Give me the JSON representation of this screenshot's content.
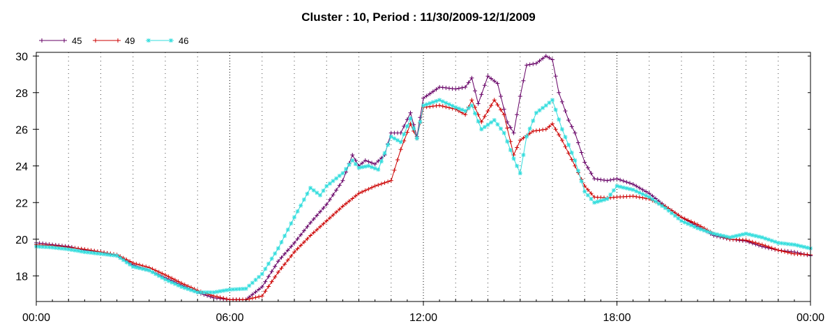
{
  "chart_data": {
    "type": "line",
    "title": "Cluster : 10, Period : 11/30/2009-12/1/2009",
    "xlabel": "",
    "ylabel": "",
    "xlim_hours": [
      0,
      24
    ],
    "ylim": [
      16.6,
      30.2
    ],
    "x_ticks": [
      {
        "hour": 0,
        "label": "00:00"
      },
      {
        "hour": 6,
        "label": "06:00"
      },
      {
        "hour": 12,
        "label": "12:00"
      },
      {
        "hour": 18,
        "label": "18:00"
      },
      {
        "hour": 24,
        "label": "00:00"
      }
    ],
    "y_ticks": [
      18,
      20,
      22,
      24,
      26,
      28,
      30
    ],
    "grid": true,
    "legend_position": "top-left",
    "series": [
      {
        "name": "45",
        "color": "#660066",
        "marker": "plus",
        "points": [
          [
            0,
            19.8
          ],
          [
            0.5,
            19.7
          ],
          [
            1,
            19.6
          ],
          [
            1.5,
            19.4
          ],
          [
            2,
            19.3
          ],
          [
            2.5,
            19.1
          ],
          [
            3,
            18.6
          ],
          [
            3.5,
            18.3
          ],
          [
            4,
            17.9
          ],
          [
            4.5,
            17.5
          ],
          [
            5,
            17.1
          ],
          [
            5.5,
            16.8
          ],
          [
            6,
            16.7
          ],
          [
            6.5,
            16.7
          ],
          [
            7,
            17.4
          ],
          [
            7.5,
            18.8
          ],
          [
            8,
            19.8
          ],
          [
            8.5,
            20.9
          ],
          [
            9,
            21.9
          ],
          [
            9.5,
            23.2
          ],
          [
            9.8,
            24.6
          ],
          [
            10,
            24.0
          ],
          [
            10.2,
            24.3
          ],
          [
            10.5,
            24.1
          ],
          [
            10.8,
            24.6
          ],
          [
            11,
            25.8
          ],
          [
            11.3,
            25.8
          ],
          [
            11.6,
            26.9
          ],
          [
            11.8,
            25.6
          ],
          [
            12,
            27.7
          ],
          [
            12.5,
            28.3
          ],
          [
            13,
            28.2
          ],
          [
            13.3,
            28.3
          ],
          [
            13.5,
            28.8
          ],
          [
            13.7,
            27.4
          ],
          [
            14,
            28.9
          ],
          [
            14.3,
            28.5
          ],
          [
            14.6,
            26.4
          ],
          [
            14.8,
            25.8
          ],
          [
            15,
            27.8
          ],
          [
            15.2,
            29.5
          ],
          [
            15.5,
            29.6
          ],
          [
            15.8,
            30.0
          ],
          [
            16,
            29.8
          ],
          [
            16.2,
            28.0
          ],
          [
            16.5,
            26.5
          ],
          [
            16.7,
            25.8
          ],
          [
            17,
            24.2
          ],
          [
            17.3,
            23.3
          ],
          [
            17.7,
            23.2
          ],
          [
            18,
            23.3
          ],
          [
            18.5,
            23.0
          ],
          [
            19,
            22.5
          ],
          [
            19.5,
            21.8
          ],
          [
            20,
            21.2
          ],
          [
            20.5,
            20.7
          ],
          [
            21,
            20.2
          ],
          [
            21.5,
            20.0
          ],
          [
            22,
            19.9
          ],
          [
            22.5,
            19.6
          ],
          [
            23,
            19.4
          ],
          [
            23.5,
            19.3
          ],
          [
            24,
            19.1
          ]
        ]
      },
      {
        "name": "49",
        "color": "#cc0000",
        "marker": "plus",
        "points": [
          [
            0,
            19.7
          ],
          [
            0.5,
            19.65
          ],
          [
            1,
            19.55
          ],
          [
            1.5,
            19.45
          ],
          [
            2,
            19.3
          ],
          [
            2.5,
            19.15
          ],
          [
            3,
            18.7
          ],
          [
            3.5,
            18.45
          ],
          [
            4,
            18.05
          ],
          [
            4.5,
            17.6
          ],
          [
            5,
            17.2
          ],
          [
            5.5,
            16.9
          ],
          [
            6,
            16.7
          ],
          [
            6.5,
            16.7
          ],
          [
            7,
            16.9
          ],
          [
            7.5,
            18.2
          ],
          [
            8,
            19.3
          ],
          [
            8.5,
            20.2
          ],
          [
            9,
            21.0
          ],
          [
            9.5,
            21.8
          ],
          [
            10,
            22.5
          ],
          [
            10.5,
            22.9
          ],
          [
            11,
            23.2
          ],
          [
            11.3,
            24.9
          ],
          [
            11.6,
            26.3
          ],
          [
            11.8,
            25.5
          ],
          [
            12,
            27.2
          ],
          [
            12.5,
            27.3
          ],
          [
            13,
            27.1
          ],
          [
            13.3,
            26.8
          ],
          [
            13.5,
            27.6
          ],
          [
            13.8,
            26.4
          ],
          [
            14.2,
            27.6
          ],
          [
            14.5,
            26.8
          ],
          [
            14.8,
            24.6
          ],
          [
            15,
            25.4
          ],
          [
            15.4,
            25.9
          ],
          [
            15.8,
            26.0
          ],
          [
            16,
            26.3
          ],
          [
            16.3,
            25.4
          ],
          [
            16.7,
            24.0
          ],
          [
            17,
            22.9
          ],
          [
            17.3,
            22.3
          ],
          [
            17.7,
            22.25
          ],
          [
            18,
            22.3
          ],
          [
            18.5,
            22.35
          ],
          [
            19,
            22.2
          ],
          [
            19.5,
            21.8
          ],
          [
            20,
            21.2
          ],
          [
            20.5,
            20.8
          ],
          [
            21,
            20.3
          ],
          [
            21.5,
            20.0
          ],
          [
            22,
            19.95
          ],
          [
            22.5,
            19.7
          ],
          [
            23,
            19.4
          ],
          [
            23.5,
            19.2
          ],
          [
            24,
            19.15
          ]
        ]
      },
      {
        "name": "46",
        "color": "#33dddd",
        "marker": "star",
        "points": [
          [
            0,
            19.6
          ],
          [
            0.5,
            19.55
          ],
          [
            1,
            19.45
          ],
          [
            1.5,
            19.3
          ],
          [
            2,
            19.2
          ],
          [
            2.5,
            19.1
          ],
          [
            3,
            18.5
          ],
          [
            3.5,
            18.3
          ],
          [
            4,
            17.8
          ],
          [
            4.5,
            17.4
          ],
          [
            5,
            17.1
          ],
          [
            5.5,
            17.1
          ],
          [
            6,
            17.25
          ],
          [
            6.5,
            17.3
          ],
          [
            7,
            18.1
          ],
          [
            7.5,
            19.5
          ],
          [
            8,
            21.2
          ],
          [
            8.5,
            22.8
          ],
          [
            8.8,
            22.4
          ],
          [
            9,
            22.9
          ],
          [
            9.5,
            23.6
          ],
          [
            9.8,
            24.3
          ],
          [
            10,
            23.9
          ],
          [
            10.3,
            24.0
          ],
          [
            10.6,
            23.8
          ],
          [
            11,
            25.6
          ],
          [
            11.3,
            25.3
          ],
          [
            11.6,
            26.6
          ],
          [
            11.8,
            25.5
          ],
          [
            12,
            27.3
          ],
          [
            12.5,
            27.6
          ],
          [
            13,
            27.2
          ],
          [
            13.3,
            27.0
          ],
          [
            13.5,
            27.3
          ],
          [
            13.8,
            26.0
          ],
          [
            14.2,
            26.5
          ],
          [
            14.5,
            25.8
          ],
          [
            14.8,
            24.4
          ],
          [
            15,
            23.6
          ],
          [
            15.2,
            25.6
          ],
          [
            15.5,
            26.9
          ],
          [
            15.8,
            27.3
          ],
          [
            16,
            27.6
          ],
          [
            16.3,
            26.0
          ],
          [
            16.7,
            24.3
          ],
          [
            17,
            22.6
          ],
          [
            17.3,
            22.0
          ],
          [
            17.7,
            22.2
          ],
          [
            18,
            22.9
          ],
          [
            18.5,
            22.7
          ],
          [
            19,
            22.3
          ],
          [
            19.5,
            21.7
          ],
          [
            20,
            21.0
          ],
          [
            20.5,
            20.6
          ],
          [
            21,
            20.3
          ],
          [
            21.5,
            20.1
          ],
          [
            22,
            20.3
          ],
          [
            22.5,
            20.1
          ],
          [
            23,
            19.8
          ],
          [
            23.5,
            19.7
          ],
          [
            24,
            19.5
          ]
        ]
      }
    ]
  }
}
